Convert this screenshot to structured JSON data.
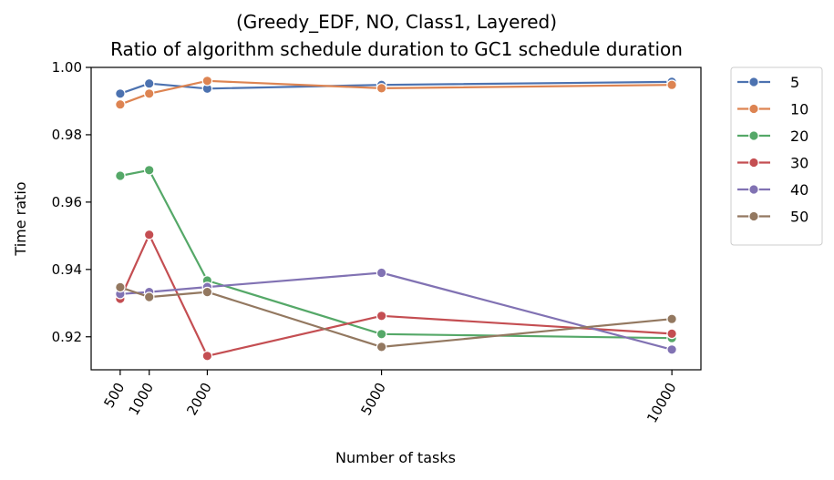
{
  "chart_data": {
    "type": "line",
    "title": "(Greedy_EDF, NO, Class1, Layered)",
    "subtitle": "Ratio of algorithm schedule duration to GC1 schedule duration",
    "xlabel": "Number of tasks",
    "ylabel": "Time ratio",
    "x": [
      500,
      1000,
      2000,
      5000,
      10000
    ],
    "x_tick_labels": [
      "500",
      "1000",
      "2000",
      "5000",
      "10000"
    ],
    "xlim": [
      0,
      10500
    ],
    "ylim": [
      0.9102,
      1.0
    ],
    "y_ticks": [
      0.92,
      0.94,
      0.96,
      0.98,
      1.0
    ],
    "y_tick_labels": [
      "0.92",
      "0.94",
      "0.96",
      "0.98",
      "1.00"
    ],
    "grid": false,
    "legend_placement": "outside-right",
    "series": [
      {
        "name": "5",
        "color": "#4c72b0",
        "values": [
          0.9922,
          0.9952,
          0.9937,
          0.9948,
          0.9957
        ]
      },
      {
        "name": "10",
        "color": "#dd8452",
        "values": [
          0.989,
          0.9922,
          0.996,
          0.9938,
          0.9948
        ]
      },
      {
        "name": "20",
        "color": "#55a868",
        "values": [
          0.9678,
          0.9695,
          0.9367,
          0.9208,
          0.9196
        ]
      },
      {
        "name": "30",
        "color": "#c44e52",
        "values": [
          0.9313,
          0.9503,
          0.9143,
          0.9262,
          0.9209
        ]
      },
      {
        "name": "40",
        "color": "#8172b3",
        "values": [
          0.9327,
          0.9333,
          0.9348,
          0.939,
          0.9162
        ]
      },
      {
        "name": "50",
        "color": "#937860",
        "values": [
          0.9347,
          0.9318,
          0.9333,
          0.917,
          0.9253
        ]
      }
    ]
  }
}
